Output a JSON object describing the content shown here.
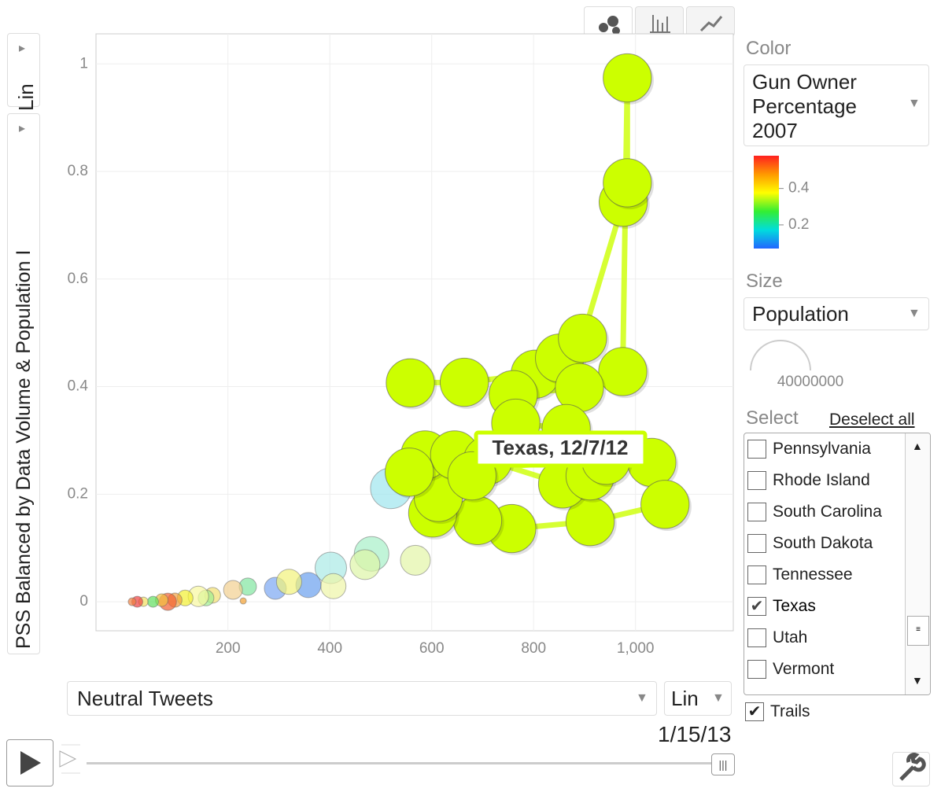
{
  "ui": {
    "y_scale": "Lin",
    "x_option": "Neutral Tweets",
    "x_scale": "Lin",
    "date": "1/15/13",
    "color_label": "Color",
    "color_option": "Gun Owner Percentage 2007",
    "size_label": "Size",
    "size_option": "Population",
    "select_label": "Select",
    "deselect": "Deselect all",
    "trails": "Trails",
    "trails_checked": true,
    "states": [
      {
        "name": "Pennsylvania",
        "checked": false
      },
      {
        "name": "Rhode Island",
        "checked": false
      },
      {
        "name": "South Carolina",
        "checked": false
      },
      {
        "name": "South Dakota",
        "checked": false
      },
      {
        "name": "Tennessee",
        "checked": false
      },
      {
        "name": "Texas",
        "checked": true
      },
      {
        "name": "Utah",
        "checked": false
      },
      {
        "name": "Vermont",
        "checked": false
      }
    ]
  },
  "chart_data": {
    "type": "bubble",
    "y_label": "PSS Balanced by Data Volume & Population I",
    "xlim": [
      -59,
      1192
    ],
    "ylim": [
      -0.054,
      1.056
    ],
    "xticks": [
      200,
      400,
      600,
      800,
      {
        "value": 1000,
        "label": "1,000"
      }
    ],
    "yticks": [
      0,
      0.2,
      0.4,
      0.6,
      0.8,
      1
    ],
    "grid": true,
    "annotation": "Texas, 12/7/12",
    "color_range": [
      0.07,
      0.58
    ],
    "color_ticks": [
      0.2,
      0.4
    ],
    "size_legend": 40000000,
    "series": [
      {
        "name": "Texas",
        "color": "#ccff00",
        "size": 26060796,
        "x": [
          558,
          664,
          803,
          851,
          896,
          976,
          984,
          984,
          975,
          890,
          760,
          765,
          864,
          1032,
          1058,
          911,
          757,
          690,
          602,
          613,
          587,
          645,
          710,
          857,
          911,
          942,
          556,
          679
        ],
        "y": [
          0.407,
          0.408,
          0.423,
          0.453,
          0.49,
          0.743,
          0.779,
          0.974,
          0.428,
          0.398,
          0.385,
          0.332,
          0.322,
          0.259,
          0.181,
          0.149,
          0.136,
          0.151,
          0.165,
          0.194,
          0.273,
          0.273,
          0.263,
          0.219,
          0.234,
          0.263,
          0.241,
          0.234
        ]
      }
    ],
    "bubbles": {
      "x": [
        520,
        482,
        469,
        568,
        402,
        407,
        358,
        293,
        320,
        239,
        210,
        230,
        170,
        157,
        142,
        116,
        96,
        82,
        70,
        53,
        34,
        22,
        12
      ],
      "y": [
        0.211,
        0.089,
        0.069,
        0.077,
        0.063,
        0.029,
        0.031,
        0.025,
        0.037,
        0.028,
        0.022,
        0.0015,
        0.012,
        0.007,
        0.01,
        0.007,
        0.003,
        0,
        0.003,
        0,
        0,
        0,
        0
      ],
      "sizes": [
        18700000,
        13400000,
        10000000,
        10000000,
        11100000,
        7100000,
        7100000,
        5400000,
        7100000,
        3350000,
        4000000,
        440000,
        2770000,
        2770000,
        4700000,
        2770000,
        2240000,
        3350000,
        1770000,
        1360000,
        1000000,
        1360000,
        690000
      ],
      "colors": [
        "#9ee6ee",
        "#a6f0c8",
        "#ddf5a6",
        "#e3f5a6",
        "#a9e9e6",
        "#eef5a6",
        "#6aa0ee",
        "#7aa6f2",
        "#f2f27a",
        "#80e6a0",
        "#f2d090",
        "#f2a030",
        "#f2e070",
        "#a0f090",
        "#f8f8a0",
        "#f2f030",
        "#f2a040",
        "#f26030",
        "#f2c040",
        "#60e060",
        "#f2e060",
        "#f04040",
        "#f08040"
      ]
    }
  }
}
